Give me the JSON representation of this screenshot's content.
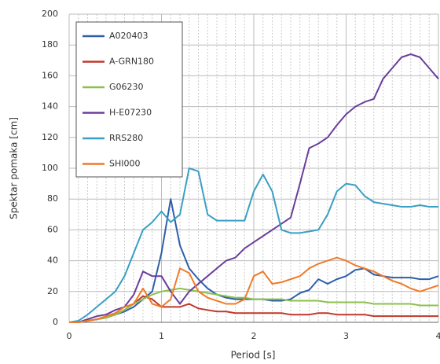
{
  "chart_data": {
    "type": "line",
    "x_label": "Period [s]",
    "y_label": "Spektar pomaka [cm]",
    "x": [
      0,
      0.1,
      0.2,
      0.3,
      0.4,
      0.5,
      0.6,
      0.7,
      0.8,
      0.9,
      1,
      1.1,
      1.2,
      1.3,
      1.4,
      1.5,
      1.6,
      1.7,
      1.8,
      1.9,
      2,
      2.1,
      2.2,
      2.3,
      2.4,
      2.5,
      2.6,
      2.7,
      2.8,
      2.9,
      3,
      3.1,
      3.2,
      3.3,
      3.4,
      3.5,
      3.6,
      3.7,
      3.8,
      3.9,
      4
    ],
    "series": [
      {
        "name": "A020403",
        "color": "#2e5fa8",
        "values": [
          0,
          0,
          1,
          2,
          3,
          5,
          7,
          10,
          15,
          20,
          45,
          80,
          50,
          35,
          28,
          22,
          18,
          16,
          15,
          15,
          15,
          15,
          14,
          14,
          15,
          19,
          21,
          28,
          25,
          28,
          30,
          34,
          35,
          31,
          30,
          29,
          29,
          29,
          28,
          28,
          30
        ]
      },
      {
        "name": "A-GRN180",
        "color": "#c0392b",
        "values": [
          0,
          0,
          1,
          2,
          3,
          5,
          8,
          12,
          17,
          15,
          10,
          10,
          10,
          12,
          9,
          8,
          7,
          7,
          6,
          6,
          6,
          6,
          6,
          6,
          5,
          5,
          5,
          6,
          6,
          5,
          5,
          5,
          5,
          4,
          4,
          4,
          4,
          4,
          4,
          4,
          4
        ]
      },
      {
        "name": "G06230",
        "color": "#8dc04a",
        "values": [
          0,
          0,
          1,
          2,
          3,
          5,
          8,
          12,
          15,
          18,
          20,
          21,
          22,
          21,
          20,
          19,
          18,
          17,
          16,
          16,
          15,
          15,
          15,
          15,
          14,
          14,
          14,
          14,
          13,
          13,
          13,
          13,
          13,
          12,
          12,
          12,
          12,
          12,
          11,
          11,
          11
        ]
      },
      {
        "name": "H-E07230",
        "color": "#6a3d9a",
        "values": [
          0,
          0,
          2,
          4,
          5,
          8,
          10,
          18,
          33,
          30,
          30,
          20,
          12,
          20,
          25,
          30,
          35,
          40,
          42,
          48,
          52,
          56,
          60,
          64,
          68,
          90,
          113,
          116,
          120,
          128,
          135,
          140,
          143,
          145,
          158,
          165,
          172,
          174,
          172,
          165,
          158
        ]
      },
      {
        "name": "RRS280",
        "color": "#3a9fc4",
        "values": [
          0,
          1,
          5,
          10,
          15,
          20,
          30,
          45,
          60,
          65,
          72,
          65,
          70,
          100,
          98,
          70,
          66,
          66,
          66,
          66,
          85,
          96,
          85,
          60,
          58,
          58,
          59,
          60,
          70,
          85,
          90,
          89,
          82,
          78,
          77,
          76,
          75,
          75,
          76,
          75,
          75
        ]
      },
      {
        "name": "SHI000",
        "color": "#f07a28",
        "values": [
          0,
          0,
          1,
          2,
          4,
          6,
          10,
          12,
          22,
          12,
          10,
          15,
          35,
          32,
          20,
          16,
          14,
          12,
          12,
          15,
          30,
          33,
          25,
          26,
          28,
          30,
          35,
          38,
          40,
          42,
          40,
          37,
          35,
          33,
          30,
          27,
          25,
          22,
          20,
          22,
          24
        ]
      }
    ],
    "xlim": [
      0,
      4
    ],
    "xticks": [
      0,
      1,
      2,
      3,
      4
    ],
    "ylim": [
      0,
      200
    ],
    "yticks": [
      0,
      20,
      40,
      60,
      80,
      100,
      120,
      140,
      160,
      180,
      200
    ],
    "grid": true,
    "legend": "upper left"
  }
}
